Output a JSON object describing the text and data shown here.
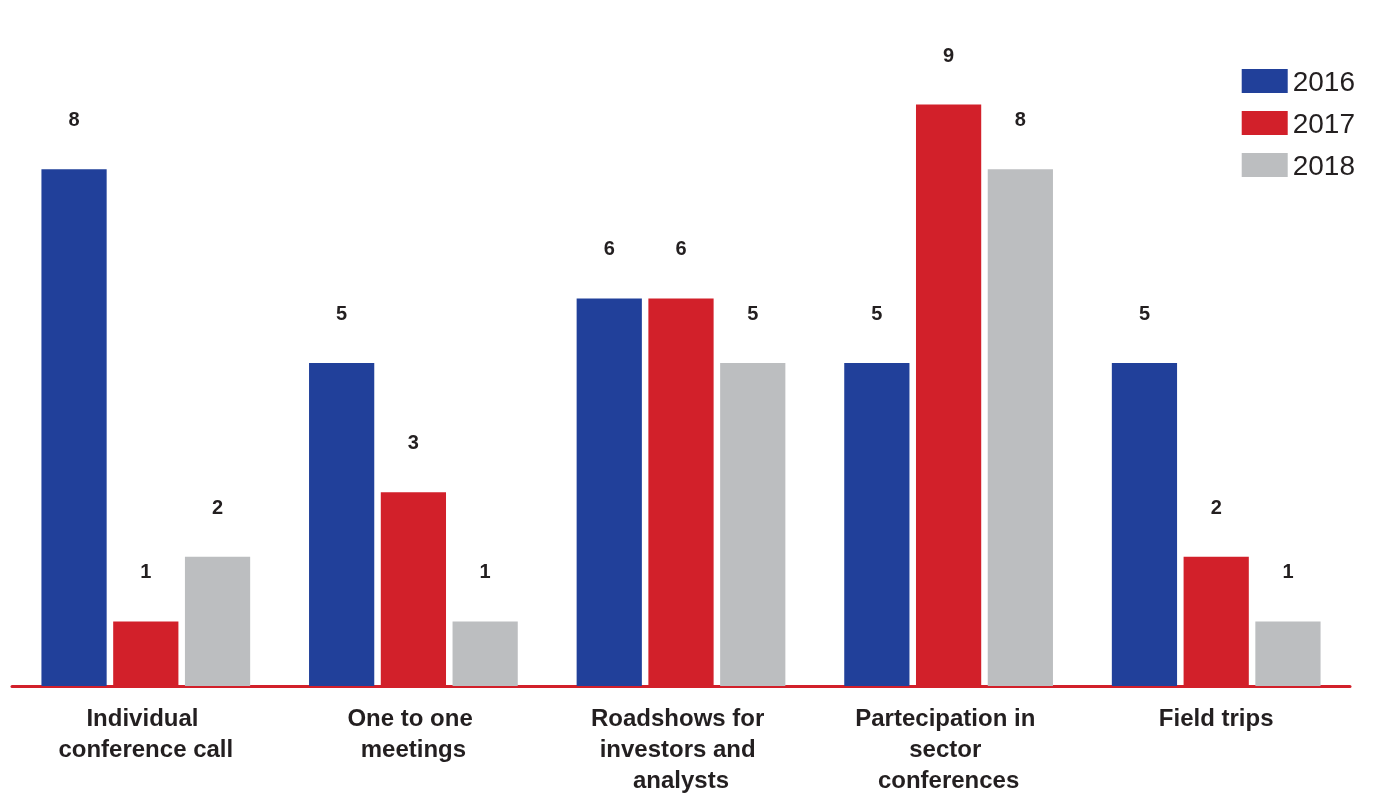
{
  "chart_data": {
    "type": "bar",
    "categories": [
      "Individual conference call",
      "One to one meetings",
      "Roadshows for investors and analysts",
      "Partecipation in sector conferences",
      "Field trips"
    ],
    "series": [
      {
        "name": "2016",
        "color": "#21409a",
        "values": [
          8,
          5,
          6,
          5,
          5
        ]
      },
      {
        "name": "2017",
        "color": "#d2202a",
        "values": [
          1,
          3,
          6,
          9,
          2
        ]
      },
      {
        "name": "2018",
        "color": "#bcbec0",
        "values": [
          2,
          1,
          5,
          8,
          1
        ]
      }
    ],
    "data_labels": true,
    "legend": "top right"
  }
}
